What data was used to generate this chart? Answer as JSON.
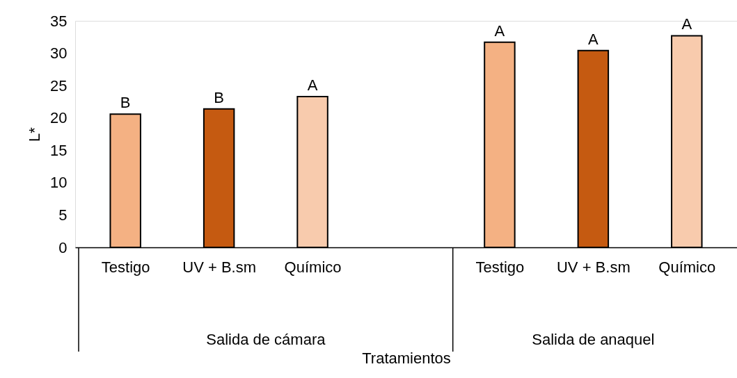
{
  "chart_data": {
    "type": "bar",
    "categories": [
      "Testigo",
      "UV + B.sm",
      "Químico",
      null,
      "Testigo",
      "UV + B.sm",
      "Químico"
    ],
    "values": [
      20.6,
      21.4,
      23.3,
      null,
      31.7,
      30.4,
      32.7
    ],
    "colors": [
      "#f4b183",
      "#c55a11",
      "#f8cbad",
      "#ffffff",
      "#f4b183",
      "#c55a11",
      "#f8cbad"
    ],
    "value_labels": [
      "B",
      "B",
      "A",
      null,
      "A",
      "A",
      "A"
    ],
    "annotations": [
      "Salida de cámara",
      "Salida de anaquel"
    ],
    "xlabel": "Tratamientos",
    "ylabel": "L*",
    "ylim": [
      0,
      35
    ],
    "yticks": [
      0,
      5,
      10,
      15,
      20,
      25,
      30,
      35
    ],
    "grid": false
  }
}
